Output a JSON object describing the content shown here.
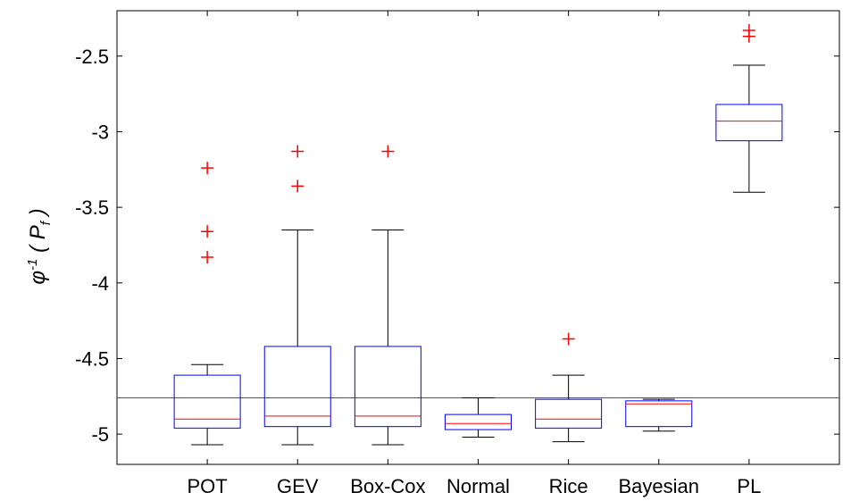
{
  "chart_data": {
    "type": "box",
    "categories": [
      "POT",
      "GEV",
      "Box-Cox",
      "Normal",
      "Rice",
      "Bayesian",
      "PL"
    ],
    "ylabel": {
      "base": "φ",
      "sup": "-1",
      "open": " ( P",
      "sub": "f",
      "close": " )"
    },
    "ylim": [
      -5.2,
      -2.2
    ],
    "yticks": [
      -5,
      -4.5,
      -4,
      -3.5,
      -3,
      -2.5
    ],
    "ytick_labels": [
      "-5",
      "-4.5",
      "-4",
      "-3.5",
      "-3",
      "-2.5"
    ],
    "reference_line": -4.76,
    "grid": false,
    "boxes": [
      {
        "category": "POT",
        "whisker_low": -5.07,
        "q1": -4.96,
        "median": -4.9,
        "q3": -4.61,
        "whisker_high": -4.54,
        "outliers": [
          -3.24,
          -3.66,
          -3.83
        ]
      },
      {
        "category": "GEV",
        "whisker_low": -5.07,
        "q1": -4.95,
        "median": -4.88,
        "q3": -4.42,
        "whisker_high": -3.65,
        "outliers": [
          -3.13,
          -3.36
        ]
      },
      {
        "category": "Box-Cox",
        "whisker_low": -5.07,
        "q1": -4.95,
        "median": -4.88,
        "q3": -4.42,
        "whisker_high": -3.65,
        "outliers": [
          -3.13
        ]
      },
      {
        "category": "Normal",
        "whisker_low": -5.02,
        "q1": -4.97,
        "median": -4.93,
        "q3": -4.87,
        "whisker_high": -4.76,
        "outliers": []
      },
      {
        "category": "Rice",
        "whisker_low": -5.05,
        "q1": -4.96,
        "median": -4.9,
        "q3": -4.77,
        "whisker_high": -4.61,
        "outliers": [
          -4.37
        ]
      },
      {
        "category": "Bayesian",
        "whisker_low": -4.98,
        "q1": -4.95,
        "median": -4.8,
        "q3": -4.78,
        "whisker_high": -4.77,
        "outliers": []
      },
      {
        "category": "PL",
        "whisker_low": -3.4,
        "q1": -3.06,
        "median": -2.93,
        "q3": -2.82,
        "whisker_high": -2.56,
        "outliers": [
          -2.33,
          -2.37
        ]
      }
    ],
    "colors": {
      "box": "#0000ff",
      "median": "#ff0000",
      "whisker": "#000000",
      "outlier": "#ff0000",
      "reference": "#555555"
    }
  }
}
